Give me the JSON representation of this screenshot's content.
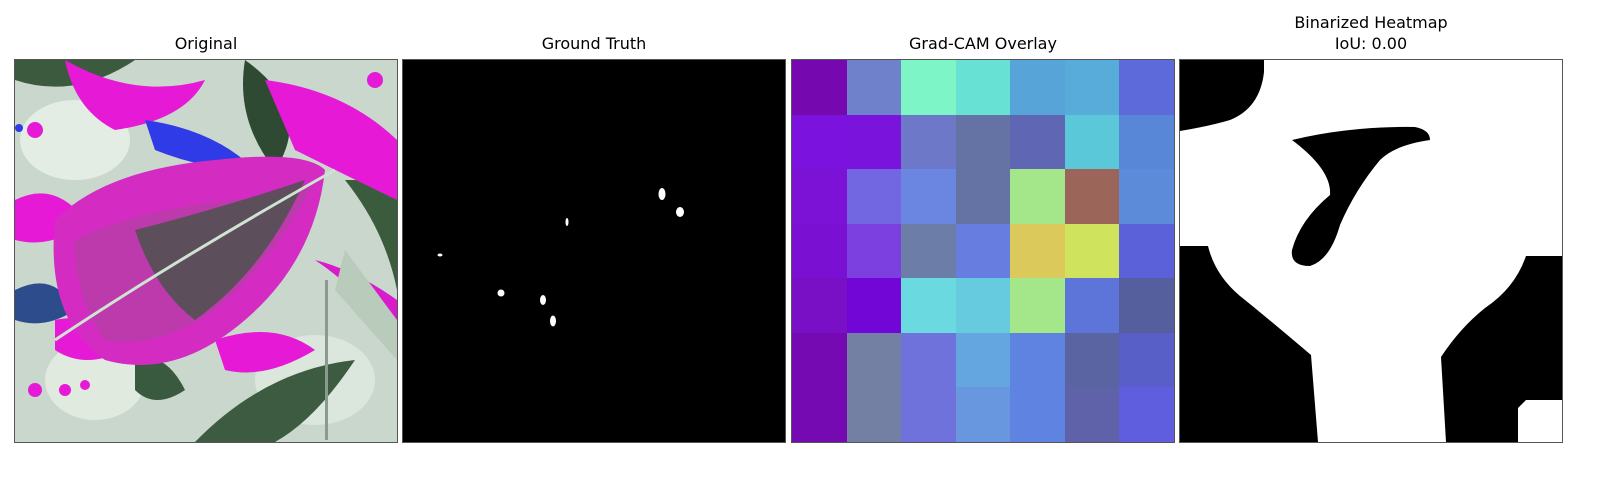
{
  "panels": [
    {
      "title": "Original"
    },
    {
      "title": "Ground Truth"
    },
    {
      "title": "Grad-CAM Overlay"
    },
    {
      "title": "Binarized Heatmap",
      "subtitle": "IoU: 0.00"
    }
  ],
  "gradcam": {
    "grid": [
      [
        "#7608b0",
        "#7081cb",
        "#7ef5c6",
        "#67e1d4",
        "#57a4d9",
        "#58acd9",
        "#5c6bd9"
      ],
      [
        "#7c12dd",
        "#7a14dc",
        "#6d78c9",
        "#6473a4",
        "#5f66b4",
        "#5ac8d8",
        "#5887d8"
      ],
      [
        "#7c12d6",
        "#7367e1",
        "#6a86e0",
        "#6473a4",
        "#a3e78a",
        "#9b6659",
        "#5b8bd9"
      ],
      [
        "#7a10d2",
        "#7c40e0",
        "#6c7da7",
        "#677ee0",
        "#dcc95b",
        "#cfe35d",
        "#5b61d9"
      ],
      [
        "#7a10c5",
        "#7206d7",
        "#6ad9e0",
        "#67cbe0",
        "#a3e78a",
        "#5d75d9",
        "#565f9e"
      ],
      [
        "#760ab2",
        "#7380a4",
        "#6f72db",
        "#64a6df",
        "#5f83e0",
        "#5a64a2",
        "#5860c8"
      ],
      [
        "#760ab2",
        "#7380a4",
        "#6f72db",
        "#6897e0",
        "#5f83e0",
        "#5f62a9",
        "#5e5ede"
      ]
    ]
  },
  "colors": {
    "magenta": "#e61ad6",
    "blue": "#2e3be6",
    "pale": "#c8d6cb",
    "dark_leaf": "#37503a",
    "mask_white": "#ffffff",
    "mask_black": "#000000"
  }
}
